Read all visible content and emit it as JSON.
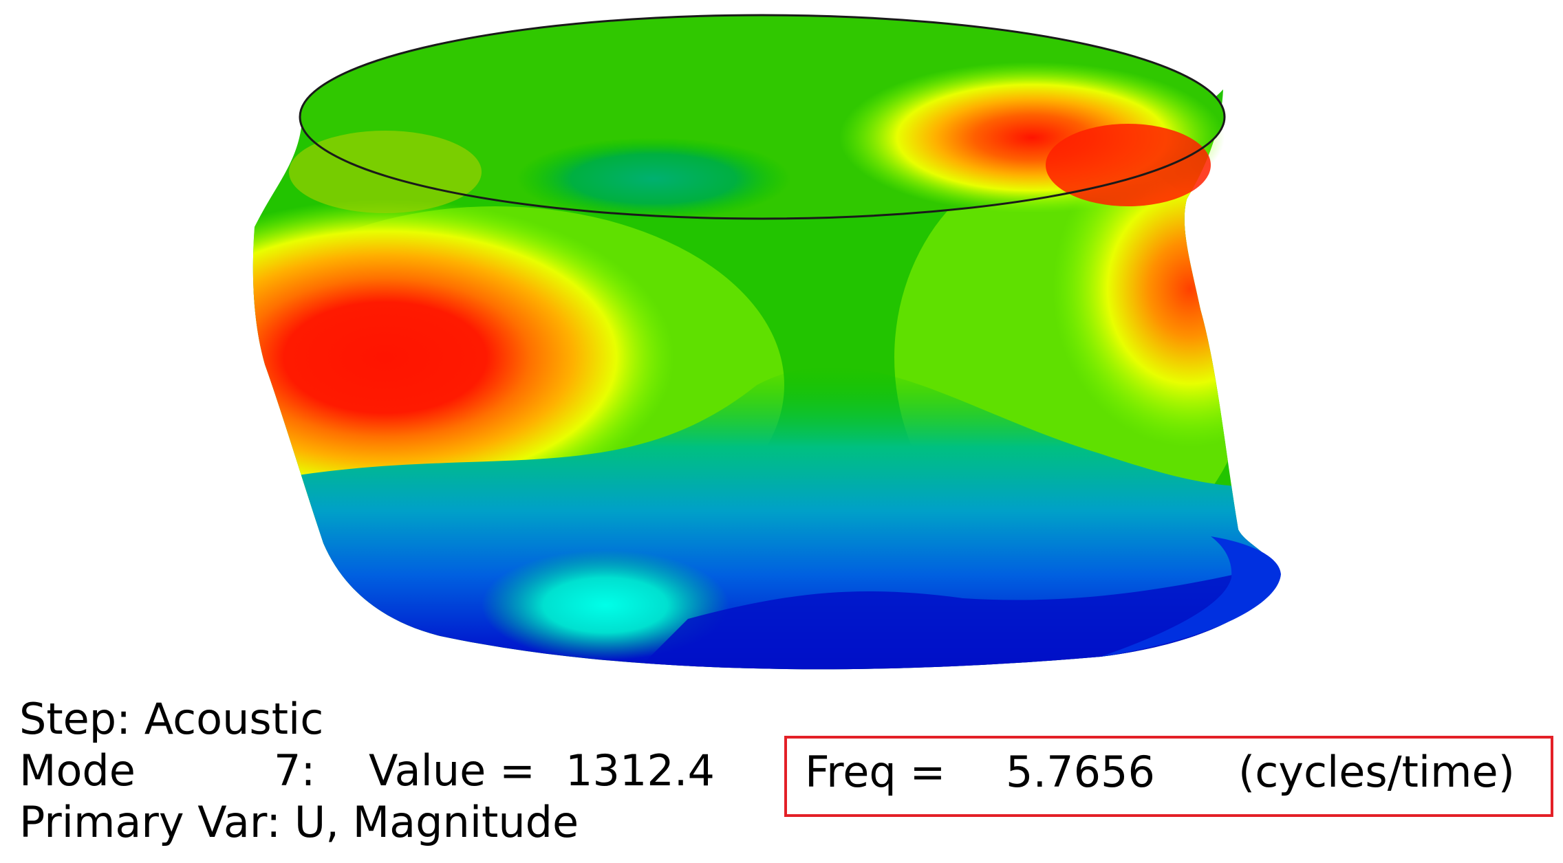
{
  "viewport": {
    "model": "deformed-cylindrical-shell",
    "contour_colors": [
      "#0000d0",
      "#0040f0",
      "#0090e0",
      "#00d0d0",
      "#00c070",
      "#00d000",
      "#7cff00",
      "#e8ff00",
      "#ffc000",
      "#ff7000",
      "#ff1400"
    ],
    "mesh_edge_color": "#1a1a1a"
  },
  "state_block": {
    "step_label": "Step: Acoustic",
    "mode_label": "Mode",
    "mode_number": "7:",
    "value_label": "Value =",
    "value": "1312.4",
    "primary_var": "Primary Var: U, Magnitude"
  },
  "frequency": {
    "label": "Freq =",
    "value": "5.7656",
    "unit": "(cycles/time)",
    "highlight_color": "#e32027"
  }
}
